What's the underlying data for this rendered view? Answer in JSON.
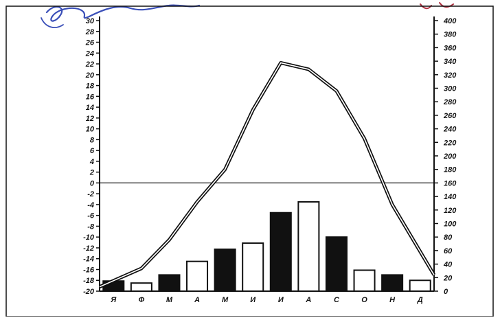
{
  "chart_data": {
    "type": "bar+line",
    "title": "",
    "categories": [
      "Я",
      "Ф",
      "М",
      "А",
      "М",
      "И",
      "И",
      "А",
      "С",
      "О",
      "Н",
      "Д"
    ],
    "series": [
      {
        "kind": "bar",
        "axis": "right",
        "values": [
          15,
          12,
          24,
          44,
          62,
          71,
          116,
          132,
          80,
          31,
          24,
          16
        ],
        "fill_pattern": [
          "black",
          "white",
          "black",
          "white",
          "black",
          "white",
          "black",
          "white",
          "black",
          "white",
          "black",
          "white"
        ]
      },
      {
        "kind": "line",
        "axis": "left",
        "values": [
          -19.2,
          -15.8,
          -10.5,
          -3.5,
          2.5,
          13.5,
          22.2,
          21.0,
          17.0,
          8.2,
          -4.0,
          -17.0
        ]
      }
    ],
    "y_left": {
      "ylim": [
        -20,
        30
      ],
      "ticks": [
        "30",
        "28",
        "26",
        "24",
        "22",
        "20",
        "18",
        "16",
        "14",
        "12",
        "10",
        "8",
        "6",
        "4",
        "2",
        "0",
        "-2",
        "-4",
        "-6",
        "-8",
        "-10",
        "-12",
        "-14",
        "-16",
        "-18",
        "-20"
      ]
    },
    "y_right": {
      "ylim": [
        0,
        400
      ],
      "ticks": [
        "400",
        "380",
        "360",
        "340",
        "320",
        "300",
        "280",
        "260",
        "240",
        "220",
        "200",
        "180",
        "160",
        "140",
        "120",
        "100",
        "80",
        "60",
        "40",
        "20",
        "0"
      ]
    },
    "zero_line": 0,
    "colors": {
      "bar_dark": "#111111",
      "bar_light": "#ffffff",
      "line": "#111111",
      "accent_scribble": "#3a4fb8",
      "accent_scribble_red": "#b03040"
    }
  }
}
